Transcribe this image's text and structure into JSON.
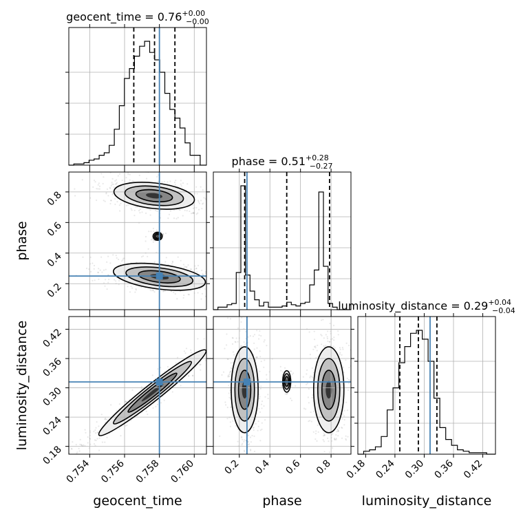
{
  "chart_data": {
    "type": "corner",
    "parameters": [
      "geocent_time",
      "phase",
      "luminosity_distance"
    ],
    "titles": {
      "geocent_time": {
        "prefix": "geocent_time = ",
        "median": "0.76",
        "plus": "+0.00",
        "minus": "−0.00"
      },
      "phase": {
        "prefix": "phase = ",
        "median": "0.51",
        "plus": "+0.28",
        "minus": "−0.27"
      },
      "luminosity_distance": {
        "prefix": "luminosity_distance = ",
        "median": "0.29",
        "plus": "+0.04",
        "minus": "−0.04"
      }
    },
    "ranges": {
      "geocent_time": [
        0.7528,
        0.7607
      ],
      "phase": [
        0.03,
        0.93
      ],
      "luminosity_distance": [
        0.164,
        0.446
      ]
    },
    "ticks": {
      "geocent_time": [
        "0.754",
        "0.756",
        "0.758",
        "0.760"
      ],
      "phase": [
        "0.2",
        "0.4",
        "0.6",
        "0.8"
      ],
      "luminosity_distance": [
        "0.18",
        "0.24",
        "0.30",
        "0.36",
        "0.42"
      ]
    },
    "truths": {
      "geocent_time": 0.758,
      "phase": 0.25,
      "luminosity_distance": 0.312
    },
    "quantiles": {
      "geocent_time": [
        0.75653,
        0.75772,
        0.75889
      ],
      "phase": [
        0.235,
        0.51,
        0.79
      ],
      "luminosity_distance": [
        0.25,
        0.288,
        0.326
      ]
    },
    "histograms": {
      "geocent_time": {
        "edges": [
          0.7528,
          0.75309,
          0.75338,
          0.75367,
          0.75396,
          0.75425,
          0.75454,
          0.75483,
          0.75512,
          0.75541,
          0.7557,
          0.75599,
          0.75628,
          0.75657,
          0.75686,
          0.75715,
          0.75744,
          0.75773,
          0.75802,
          0.75831,
          0.7586,
          0.75889,
          0.75918,
          0.75947,
          0.75976,
          0.76005,
          0.76034,
          0.7607
        ],
        "counts": [
          0,
          1,
          1,
          2,
          4,
          5,
          8,
          10,
          16,
          29,
          48,
          70,
          78,
          88,
          96,
          100,
          91,
          85,
          75,
          58,
          45,
          38,
          30,
          18,
          8,
          8,
          0
        ]
      },
      "phase": {
        "edges": [
          0.03,
          0.06,
          0.09,
          0.12,
          0.15,
          0.18,
          0.21,
          0.24,
          0.27,
          0.3,
          0.33,
          0.36,
          0.39,
          0.42,
          0.45,
          0.48,
          0.51,
          0.54,
          0.57,
          0.6,
          0.63,
          0.66,
          0.69,
          0.72,
          0.75,
          0.78,
          0.81,
          0.84,
          0.87,
          0.9,
          0.93
        ],
        "counts": [
          0,
          2,
          2,
          4,
          5,
          30,
          100,
          28,
          15,
          8,
          3,
          6,
          2,
          2,
          2,
          3,
          6,
          4,
          3,
          5,
          6,
          20,
          32,
          95,
          35,
          5,
          2,
          0,
          0,
          0
        ]
      },
      "luminosity_distance": {
        "edges": [
          0.164,
          0.176,
          0.188,
          0.2,
          0.212,
          0.224,
          0.236,
          0.248,
          0.26,
          0.272,
          0.284,
          0.296,
          0.308,
          0.32,
          0.332,
          0.344,
          0.356,
          0.368,
          0.38,
          0.392,
          0.404,
          0.416,
          0.428,
          0.446
        ],
        "counts": [
          0,
          2,
          3,
          5,
          12,
          30,
          45,
          62,
          73,
          82,
          84,
          78,
          63,
          38,
          18,
          10,
          6,
          3,
          2,
          1,
          1,
          1,
          0
        ]
      }
    },
    "contours_2d": [
      {
        "x": "geocent_time",
        "y": "phase",
        "blobs": [
          {
            "center": [
              0.7577,
              0.775
            ],
            "sx": 0.00105,
            "sy": 0.04,
            "rho": -0.3
          },
          {
            "center": [
              0.758,
              0.245
            ],
            "sx": 0.0012,
            "sy": 0.04,
            "rho": -0.4
          },
          {
            "center": [
              0.7579,
              0.51
            ],
            "sx": 0.00012,
            "sy": 0.012,
            "rho": 0
          }
        ]
      },
      {
        "x": "geocent_time",
        "y": "luminosity_distance",
        "blobs": [
          {
            "center": [
              0.7576,
              0.29
            ],
            "sx": 0.0014,
            "sy": 0.04,
            "rho": 0.97
          }
        ]
      },
      {
        "x": "phase",
        "y": "luminosity_distance",
        "blobs": [
          {
            "center": [
              0.235,
              0.296
            ],
            "sx": 0.04,
            "sy": 0.04,
            "rho": 0
          },
          {
            "center": [
              0.785,
              0.296
            ],
            "sx": 0.045,
            "sy": 0.04,
            "rho": 0
          },
          {
            "center": [
              0.51,
              0.313
            ],
            "sx": 0.012,
            "sy": 0.01,
            "rho": 0
          }
        ]
      }
    ],
    "colors": {
      "truth": "#4682b4",
      "contour": "#000000",
      "samples": "#808080"
    }
  }
}
